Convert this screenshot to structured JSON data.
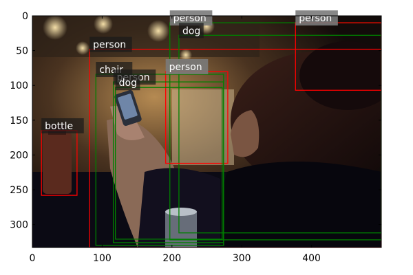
{
  "image": {
    "description": "Photo of a young woman in a dim bar looking at a mobile phone, with a bottle and a glass on the table",
    "colors": {
      "red_box": "#ff0000",
      "green_box": "#008000",
      "label_bg_dark": "#1a1a1a",
      "label_bg_gray": "#7a7a7a"
    }
  },
  "axes": {
    "x_ticks": [
      0,
      100,
      200,
      300,
      400
    ],
    "y_ticks": [
      0,
      50,
      100,
      150,
      200,
      250,
      300
    ],
    "xlim": [
      0,
      500
    ],
    "ylim": [
      0,
      333
    ]
  },
  "detections": [
    {
      "label": "person",
      "color": "red",
      "x0": 82,
      "y0": 48,
      "x1": 500,
      "y1": 333,
      "label_style": "dark",
      "label_x": 82,
      "label_y": 48
    },
    {
      "label": "person",
      "color": "green",
      "x0": 197,
      "y0": 10,
      "x1": 500,
      "y1": 322,
      "label_style": "gray",
      "label_x": 197,
      "label_y": 10
    },
    {
      "label": "dog",
      "color": "green",
      "x0": 210,
      "y0": 28,
      "x1": 500,
      "y1": 312,
      "label_style": "dark",
      "label_x": 210,
      "label_y": 28
    },
    {
      "label": "person",
      "color": "red",
      "x0": 377,
      "y0": 10,
      "x1": 500,
      "y1": 107,
      "label_style": "gray",
      "label_x": 377,
      "label_y": 10
    },
    {
      "label": "person",
      "color": "red",
      "x0": 191,
      "y0": 80,
      "x1": 280,
      "y1": 212,
      "label_style": "gray",
      "label_x": 191,
      "label_y": 80
    },
    {
      "label": "chair",
      "color": "green",
      "x0": 91,
      "y0": 84,
      "x1": 274,
      "y1": 330,
      "label_style": "dark",
      "label_x": 91,
      "label_y": 84
    },
    {
      "label": "person",
      "color": "green",
      "x0": 116,
      "y0": 95,
      "x1": 274,
      "y1": 326,
      "label_style": "dark",
      "label_x": 116,
      "label_y": 95
    },
    {
      "label": "dog",
      "color": "green",
      "x0": 119,
      "y0": 103,
      "x1": 272,
      "y1": 321,
      "label_style": "dark",
      "label_x": 119,
      "label_y": 103
    },
    {
      "label": "bottle",
      "color": "red",
      "x0": 13,
      "y0": 165,
      "x1": 64,
      "y1": 258,
      "label_style": "dark",
      "label_x": 13,
      "label_y": 165
    }
  ]
}
